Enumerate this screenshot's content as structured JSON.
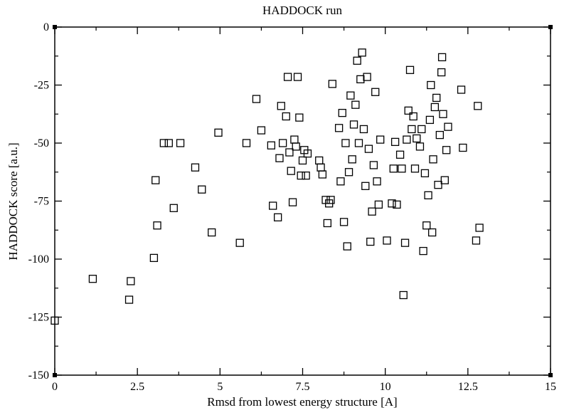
{
  "chart_data": {
    "type": "scatter",
    "title": "HADDOCK run",
    "xlabel": "Rmsd from lowest energy structure [A]",
    "ylabel": "HADDOCK score [a.u.]",
    "xlim": [
      0,
      15
    ],
    "ylim": [
      -150,
      0
    ],
    "xticks": [
      0,
      2.5,
      5,
      7.5,
      10,
      12.5,
      15
    ],
    "xtick_labels": [
      "0",
      "2.5",
      "5",
      "7.5",
      "10",
      "12.5",
      "15"
    ],
    "yticks": [
      0,
      -25,
      -50,
      -75,
      -100,
      -125,
      -150
    ],
    "ytick_labels": [
      "0",
      "-25",
      "-50",
      "-75",
      "-100",
      "-125",
      "-150"
    ],
    "grid": false,
    "marker": "open-square",
    "series": [
      {
        "points": [
          [
            0.0,
            -126.5
          ],
          [
            1.15,
            -108.5
          ],
          [
            2.25,
            -117.5
          ],
          [
            2.3,
            -109.5
          ],
          [
            3.0,
            -99.5
          ],
          [
            3.05,
            -66.0
          ],
          [
            3.1,
            -85.5
          ],
          [
            3.3,
            -50.0
          ],
          [
            3.45,
            -50.0
          ],
          [
            3.6,
            -78.0
          ],
          [
            3.8,
            -50.0
          ],
          [
            4.25,
            -60.5
          ],
          [
            4.45,
            -70.0
          ],
          [
            4.75,
            -88.5
          ],
          [
            4.95,
            -45.5
          ],
          [
            5.6,
            -93.0
          ],
          [
            5.8,
            -50.0
          ],
          [
            6.1,
            -31.0
          ],
          [
            6.25,
            -44.5
          ],
          [
            6.55,
            -51.0
          ],
          [
            6.6,
            -77.0
          ],
          [
            6.75,
            -82.0
          ],
          [
            6.8,
            -56.5
          ],
          [
            6.85,
            -34.0
          ],
          [
            6.9,
            -50.0
          ],
          [
            7.0,
            -38.5
          ],
          [
            7.05,
            -21.5
          ],
          [
            7.1,
            -54.0
          ],
          [
            7.15,
            -62.0
          ],
          [
            7.2,
            -75.5
          ],
          [
            7.25,
            -48.5
          ],
          [
            7.3,
            -51.5
          ],
          [
            7.35,
            -21.5
          ],
          [
            7.4,
            -39.0
          ],
          [
            7.45,
            -64.0
          ],
          [
            7.5,
            -57.5
          ],
          [
            7.55,
            -53.0
          ],
          [
            7.6,
            -64.0
          ],
          [
            7.65,
            -54.5
          ],
          [
            8.0,
            -57.5
          ],
          [
            8.05,
            -60.5
          ],
          [
            8.1,
            -63.5
          ],
          [
            8.2,
            -74.5
          ],
          [
            8.25,
            -84.5
          ],
          [
            8.3,
            -76.0
          ],
          [
            8.35,
            -74.5
          ],
          [
            8.4,
            -24.5
          ],
          [
            8.6,
            -43.5
          ],
          [
            8.65,
            -66.5
          ],
          [
            8.7,
            -37.0
          ],
          [
            8.75,
            -84.0
          ],
          [
            8.8,
            -50.0
          ],
          [
            8.85,
            -94.5
          ],
          [
            8.9,
            -62.5
          ],
          [
            8.95,
            -29.5
          ],
          [
            9.0,
            -57.0
          ],
          [
            9.05,
            -42.0
          ],
          [
            9.1,
            -33.5
          ],
          [
            9.15,
            -14.5
          ],
          [
            9.2,
            -50.0
          ],
          [
            9.25,
            -22.5
          ],
          [
            9.3,
            -11.0
          ],
          [
            9.35,
            -44.0
          ],
          [
            9.4,
            -68.5
          ],
          [
            9.45,
            -21.5
          ],
          [
            9.5,
            -52.5
          ],
          [
            9.55,
            -92.5
          ],
          [
            9.6,
            -79.5
          ],
          [
            9.65,
            -59.5
          ],
          [
            9.7,
            -28.0
          ],
          [
            9.75,
            -66.5
          ],
          [
            9.8,
            -76.5
          ],
          [
            9.85,
            -48.5
          ],
          [
            10.05,
            -92.0
          ],
          [
            10.2,
            -76.0
          ],
          [
            10.25,
            -61.0
          ],
          [
            10.3,
            -49.5
          ],
          [
            10.35,
            -76.5
          ],
          [
            10.45,
            -55.0
          ],
          [
            10.5,
            -61.0
          ],
          [
            10.55,
            -115.5
          ],
          [
            10.6,
            -93.0
          ],
          [
            10.65,
            -48.5
          ],
          [
            10.7,
            -36.0
          ],
          [
            10.75,
            -18.5
          ],
          [
            10.8,
            -44.0
          ],
          [
            10.85,
            -38.5
          ],
          [
            10.9,
            -61.0
          ],
          [
            10.95,
            -48.0
          ],
          [
            11.05,
            -51.5
          ],
          [
            11.1,
            -44.0
          ],
          [
            11.15,
            -96.5
          ],
          [
            11.2,
            -63.0
          ],
          [
            11.25,
            -85.5
          ],
          [
            11.3,
            -72.5
          ],
          [
            11.35,
            -40.0
          ],
          [
            11.38,
            -25.0
          ],
          [
            11.42,
            -88.5
          ],
          [
            11.45,
            -57.0
          ],
          [
            11.5,
            -34.5
          ],
          [
            11.55,
            -30.5
          ],
          [
            11.6,
            -68.0
          ],
          [
            11.65,
            -46.5
          ],
          [
            11.7,
            -19.5
          ],
          [
            11.72,
            -13.0
          ],
          [
            11.75,
            -37.5
          ],
          [
            11.8,
            -66.0
          ],
          [
            11.85,
            -53.0
          ],
          [
            11.9,
            -43.0
          ],
          [
            12.3,
            -27.0
          ],
          [
            12.35,
            -52.0
          ],
          [
            12.75,
            -92.0
          ],
          [
            12.8,
            -34.0
          ],
          [
            12.85,
            -86.5
          ]
        ]
      }
    ]
  }
}
